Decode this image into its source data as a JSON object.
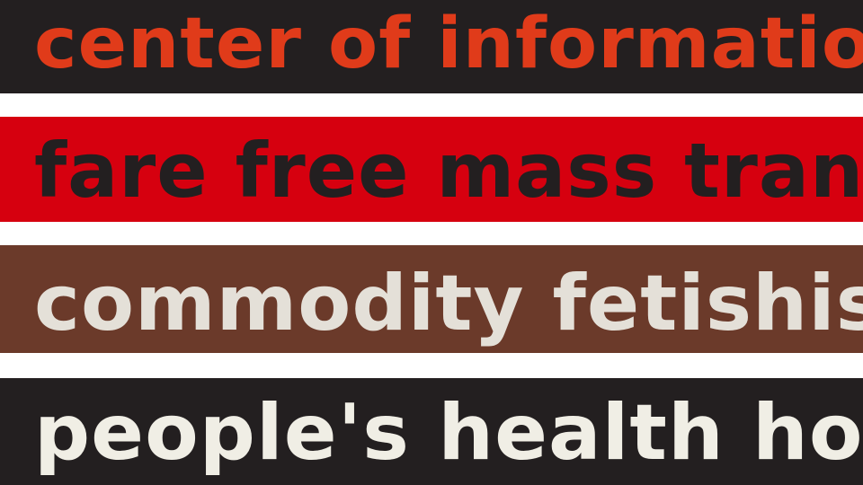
{
  "bands": [
    {
      "text": "center of information",
      "background": "#231f20",
      "color": "#e03b1a"
    },
    {
      "text": "fare free mass transit",
      "background": "#d6000f",
      "color": "#231f20"
    },
    {
      "text": "commodity fetishism",
      "background": "#6b3a2a",
      "color": "#e4e0d8"
    },
    {
      "text": "people's health house",
      "background": "#231f20",
      "color": "#f0eee5"
    }
  ],
  "separator_color": "#ffffff"
}
